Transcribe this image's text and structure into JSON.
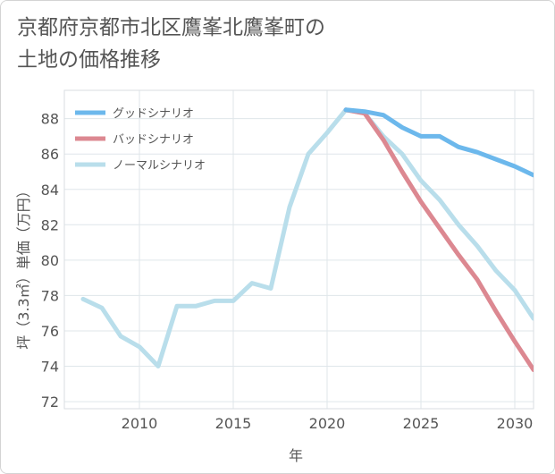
{
  "page": {
    "title_line1": "京都府京都市北区鷹峯北鷹峯町の",
    "title_line2": "土地の価格推移"
  },
  "colors": {
    "good": "#6cb8ec",
    "bad": "#dc8891",
    "normal": "#b9deeb",
    "grid": "#dfe6ea",
    "text": "#555555"
  },
  "chart_data": {
    "type": "line",
    "title": "京都府京都市北区鷹峯北鷹峯町の土地の価格推移",
    "xlabel": "年",
    "ylabel": "坪（3.3㎡）単価（万円）",
    "xlim": [
      2006,
      2031
    ],
    "ylim": [
      71.6,
      89.6
    ],
    "x_ticks": [
      2010,
      2015,
      2020,
      2025,
      2030
    ],
    "y_ticks": [
      72,
      74,
      76,
      78,
      80,
      82,
      84,
      86,
      88
    ],
    "grid": true,
    "legend_position": "top-left",
    "series": [
      {
        "name": "グッドシナリオ",
        "color_key": "good",
        "x": [
          2021,
          2022,
          2023,
          2024,
          2025,
          2026,
          2027,
          2028,
          2029,
          2030,
          2031
        ],
        "y": [
          88.5,
          88.4,
          88.2,
          87.5,
          87.0,
          87.0,
          86.4,
          86.1,
          85.7,
          85.3,
          84.8
        ]
      },
      {
        "name": "バッドシナリオ",
        "color_key": "bad",
        "x": [
          2021,
          2022,
          2023,
          2024,
          2025,
          2026,
          2027,
          2028,
          2029,
          2030,
          2031
        ],
        "y": [
          88.5,
          88.3,
          86.8,
          85.0,
          83.3,
          81.8,
          80.3,
          78.9,
          77.1,
          75.4,
          73.8
        ]
      },
      {
        "name": "ノーマルシナリオ",
        "color_key": "normal",
        "x": [
          2007,
          2008,
          2009,
          2010,
          2011,
          2012,
          2013,
          2014,
          2015,
          2016,
          2017,
          2018,
          2019,
          2020,
          2021,
          2022,
          2023,
          2024,
          2025,
          2026,
          2027,
          2028,
          2029,
          2030,
          2031
        ],
        "y": [
          77.8,
          77.3,
          75.7,
          75.1,
          74.0,
          77.4,
          77.4,
          77.7,
          77.7,
          78.7,
          78.4,
          83.0,
          86.0,
          87.2,
          88.5,
          88.3,
          87.0,
          86.0,
          84.5,
          83.4,
          82.0,
          80.8,
          79.4,
          78.3,
          76.7
        ]
      }
    ]
  }
}
